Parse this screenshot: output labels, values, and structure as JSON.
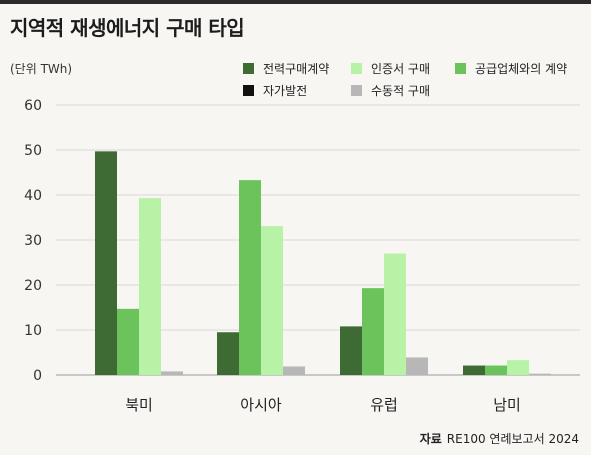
{
  "title": "지역적 재생에너지 구매 타입",
  "unit_label": "(단위 TWh)",
  "source": {
    "label": "자료",
    "text": "RE100 연례보고서 2024"
  },
  "chart_data": {
    "type": "bar",
    "categories": [
      "북미",
      "아시아",
      "유럽",
      "남미"
    ],
    "series": [
      {
        "name": "전력구매계약",
        "color": "#3d6b33",
        "values": [
          49.7,
          9.5,
          10.8,
          2.1
        ]
      },
      {
        "name": "공급업체와의 계약",
        "color": "#6cc35c",
        "values": [
          14.7,
          43.3,
          19.3,
          2.1
        ]
      },
      {
        "name": "인증서 구매",
        "color": "#b8f2a6",
        "values": [
          39.3,
          33.1,
          27.0,
          3.3
        ]
      },
      {
        "name": "수동적 구매",
        "color": "#b7b7b7",
        "values": [
          0.8,
          1.9,
          3.9,
          0.3
        ]
      },
      {
        "name": "자가발전",
        "color": "#111111",
        "values": [
          0,
          0,
          0,
          0
        ]
      }
    ],
    "ylim": [
      0,
      60
    ],
    "yticks": [
      0,
      10,
      20,
      30,
      40,
      50,
      60
    ],
    "grid": true,
    "legend_position": "top-right"
  }
}
